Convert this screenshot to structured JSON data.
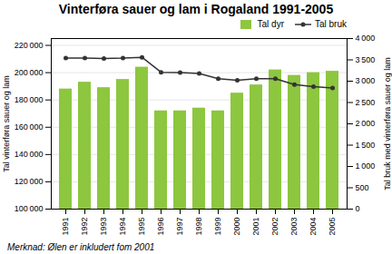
{
  "chart_data": {
    "type": "combo",
    "title": "Vinterføra sauer og lam i Rogaland 1991-2005",
    "footnote": "Merknad: Ølen er inkludert fom 2001",
    "categories": [
      "1991",
      "1992",
      "1993",
      "1994",
      "1995",
      "1996",
      "1997",
      "1998",
      "1999",
      "2000",
      "2001",
      "2002",
      "2003",
      "2004",
      "2005"
    ],
    "series": [
      {
        "name": "Tal dyr",
        "type": "bar",
        "color": "#8dc63f",
        "values": [
          188000,
          193000,
          189000,
          195000,
          204000,
          172000,
          172000,
          174000,
          172000,
          185000,
          191000,
          202000,
          198000,
          200000,
          201000
        ]
      },
      {
        "name": "Tal bruk",
        "type": "line",
        "axis": "y2",
        "color": "#333333",
        "marker": "circle",
        "values": [
          3540,
          3540,
          3530,
          3540,
          3560,
          3210,
          3200,
          3180,
          3060,
          3020,
          3060,
          3060,
          2920,
          2870,
          2840
        ]
      }
    ],
    "ylabel": "Tal vinterføra sauer og lam",
    "y2label": "Tal bruk med vinterføra sauer og lam",
    "ylim": [
      100000,
      225000
    ],
    "yticks": [
      {
        "value": 100000,
        "label": "100 000"
      },
      {
        "value": 120000,
        "label": "120 000"
      },
      {
        "value": 140000,
        "label": "140 000"
      },
      {
        "value": 160000,
        "label": "160 000"
      },
      {
        "value": 180000,
        "label": "180 000"
      },
      {
        "value": 200000,
        "label": "200 000"
      },
      {
        "value": 220000,
        "label": "220 000"
      }
    ],
    "y2lim": [
      0,
      4000
    ],
    "y2ticks": [
      0,
      500,
      {
        "value": 1000,
        "label": "1 000"
      },
      {
        "value": 1500,
        "label": "1 500"
      },
      {
        "value": 2000,
        "label": "2 000"
      },
      {
        "value": 2500,
        "label": "2 500"
      },
      {
        "value": 3000,
        "label": "3 000"
      },
      {
        "value": 3500,
        "label": "3 500"
      },
      {
        "value": 4000,
        "label": "4 000"
      }
    ],
    "grid": true,
    "legend": "upper right"
  }
}
